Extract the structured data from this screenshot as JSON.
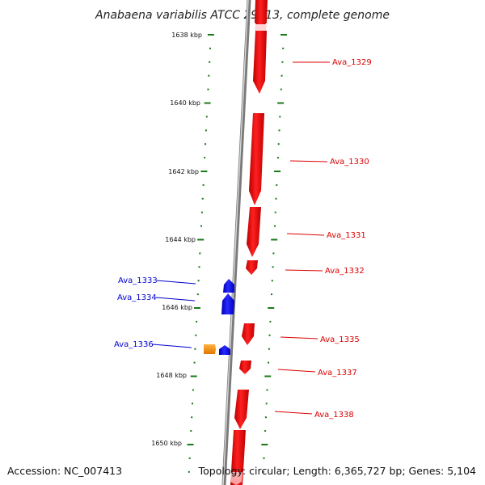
{
  "title": "Anabaena variabilis ATCC 29413, complete genome",
  "footer": {
    "accession": "Accession: NC_007413",
    "summary": "Topology: circular; Length: 6,365,727 bp; Genes: 5,104"
  },
  "colors": {
    "forward_strand": "#0000ee",
    "reverse_strand": "#ee0000",
    "rna_feature": "#ff8c00",
    "tick": "#1a7a1a",
    "backbone": "#808080"
  },
  "scale_labels": [
    "1638 kbp",
    "1640 kbp",
    "1642 kbp",
    "1644 kbp",
    "1646 kbp",
    "1648 kbp",
    "1650 kbp"
  ],
  "gene_labels": {
    "Ava_1329": "Ava_1329",
    "Ava_1330": "Ava_1330",
    "Ava_1331": "Ava_1331",
    "Ava_1332": "Ava_1332",
    "Ava_1333": "Ava_1333",
    "Ava_1334": "Ava_1334",
    "Ava_1335": "Ava_1335",
    "Ava_1336": "Ava_1336",
    "Ava_1337": "Ava_1337",
    "Ava_1338": "Ava_1338"
  }
}
